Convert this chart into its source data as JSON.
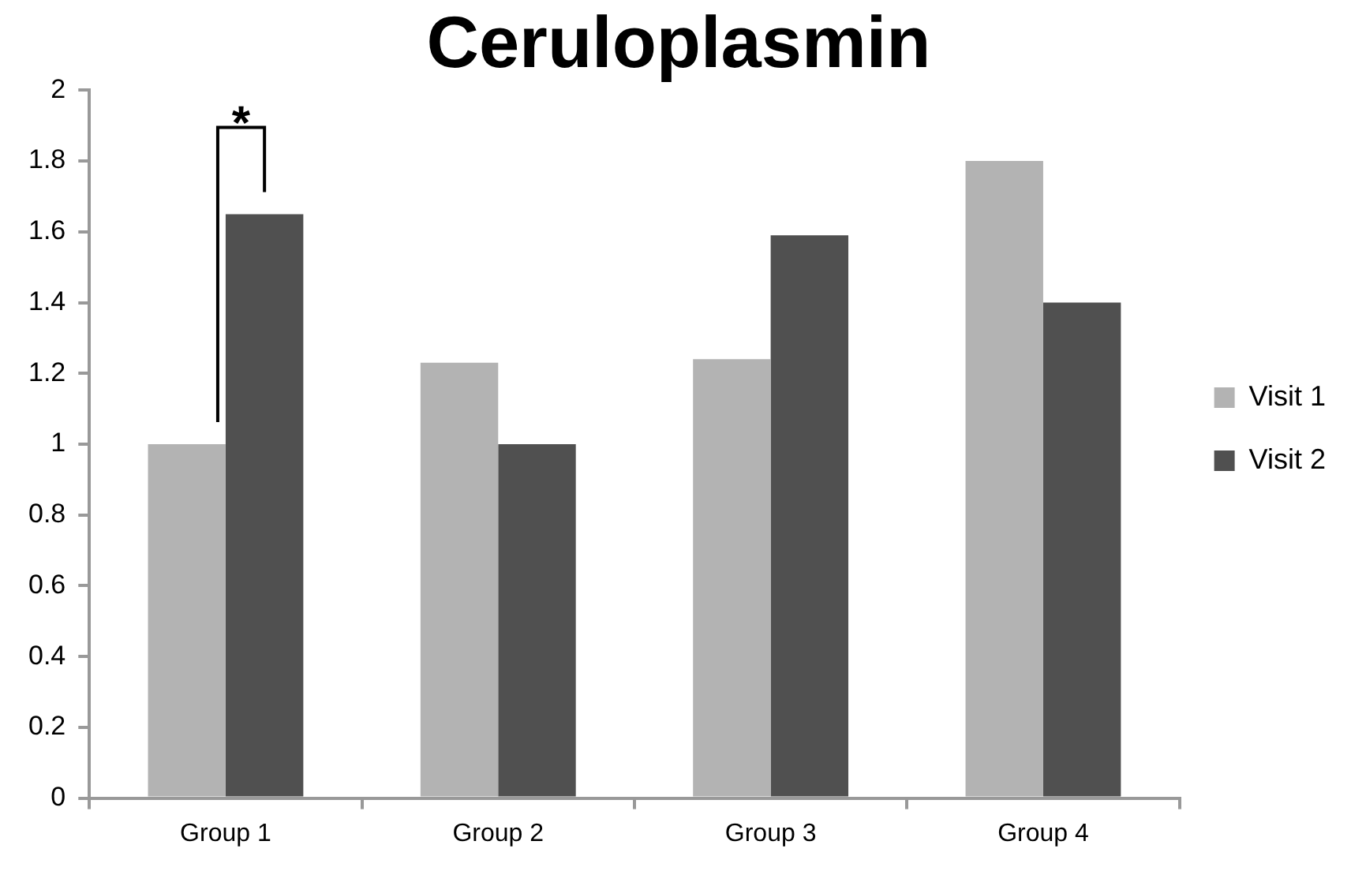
{
  "chart_data": {
    "type": "bar",
    "title": "Ceruloplasmin",
    "categories": [
      "Group 1",
      "Group 2",
      "Group 3",
      "Group 4"
    ],
    "series": [
      {
        "name": "Visit 1",
        "color": "#b3b3b3",
        "values": [
          1.0,
          1.23,
          1.24,
          1.8
        ]
      },
      {
        "name": "Visit 2",
        "color": "#505050",
        "values": [
          1.65,
          1.0,
          1.59,
          1.4
        ]
      }
    ],
    "ylim": [
      0,
      2
    ],
    "yticks": [
      0,
      0.2,
      0.4,
      0.6,
      0.8,
      1,
      1.2,
      1.4,
      1.6,
      1.8,
      2
    ],
    "grid": false,
    "legend": "right",
    "annotations": [
      "*"
    ]
  }
}
